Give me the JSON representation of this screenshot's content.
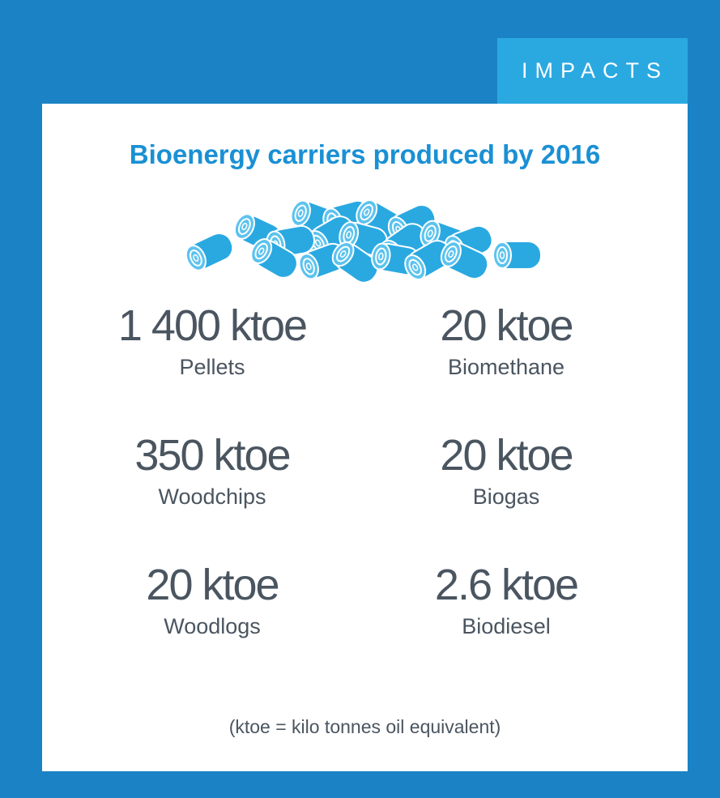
{
  "tag": "IMPACTS",
  "title": "Bioenergy carriers produced by 2016",
  "items": [
    {
      "value": "1 400 ktoe",
      "label": "Pellets"
    },
    {
      "value": "20 ktoe",
      "label": "Biomethane"
    },
    {
      "value": "350 ktoe",
      "label": "Woodchips"
    },
    {
      "value": "20 ktoe",
      "label": "Biogas"
    },
    {
      "value": "20 ktoe",
      "label": "Woodlogs"
    },
    {
      "value": "2.6 ktoe",
      "label": "Biodiesel"
    }
  ],
  "footnote": "(ktoe = kilo tonnes oil equivalent)"
}
